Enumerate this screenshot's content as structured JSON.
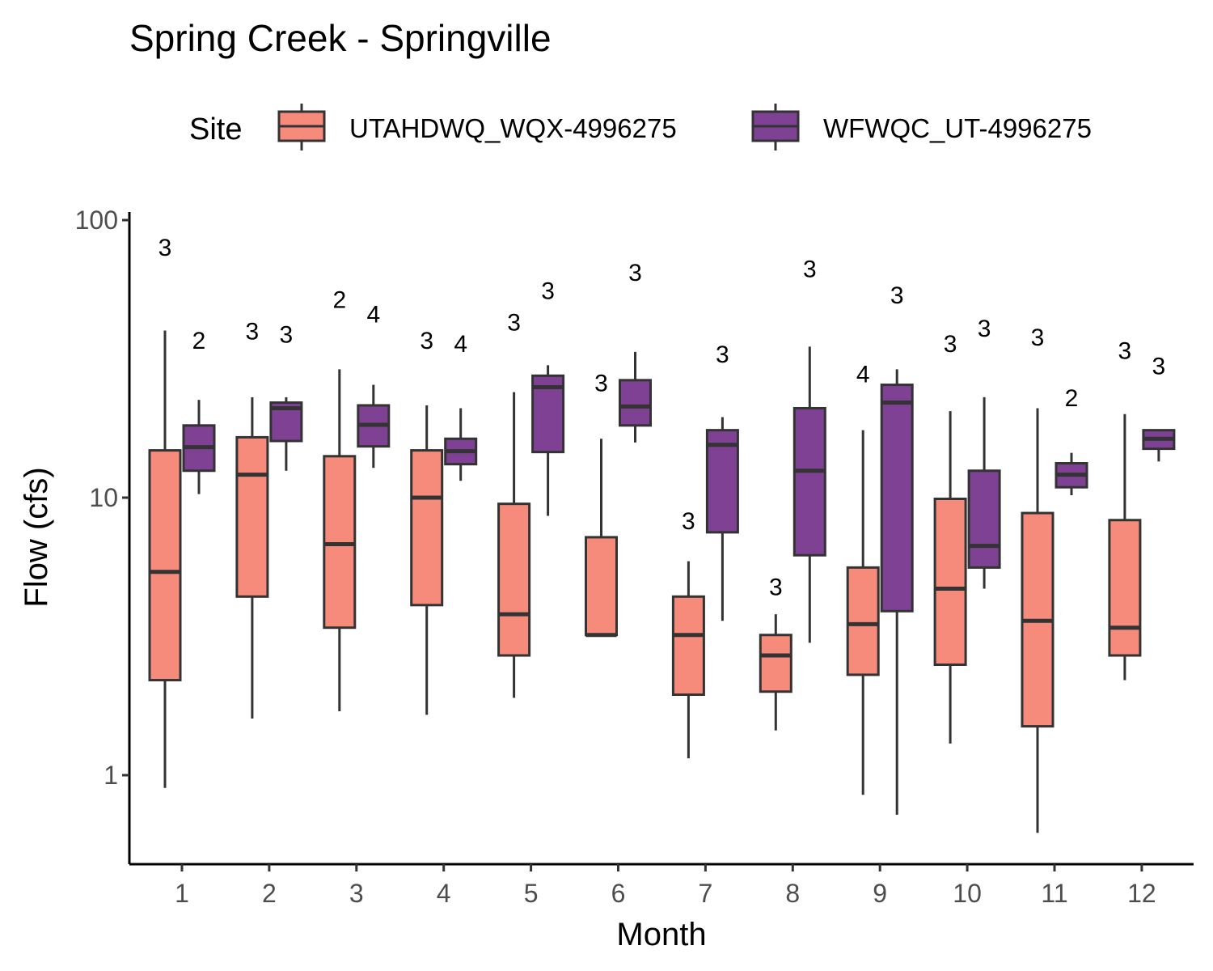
{
  "chart_data": {
    "type": "box",
    "title": "Spring Creek - Springville",
    "xlabel": "Month",
    "ylabel": "Flow (cfs)",
    "y_scale": "log10",
    "ylim": [
      0.53,
      100
    ],
    "y_ticks": [
      1,
      10,
      100
    ],
    "y_tick_labels": [
      "1",
      "10",
      "100"
    ],
    "categories": [
      "1",
      "2",
      "3",
      "4",
      "5",
      "6",
      "7",
      "8",
      "9",
      "10",
      "11",
      "12"
    ],
    "legend": {
      "title": "Site",
      "position": "top"
    },
    "grid": false,
    "series": [
      {
        "name": "UTAHDWQ_WQX-4996275",
        "color": "#F68B7C",
        "boxes": [
          {
            "month": "1",
            "min": 0.9,
            "q1": 2.2,
            "median": 5.4,
            "q3": 14.8,
            "max": 40,
            "n": "3"
          },
          {
            "month": "2",
            "min": 1.6,
            "q1": 4.4,
            "median": 12.1,
            "q3": 16.5,
            "max": 23,
            "n": "3"
          },
          {
            "month": "3",
            "min": 1.7,
            "q1": 3.4,
            "median": 6.8,
            "q3": 14.1,
            "max": 29,
            "n": "2"
          },
          {
            "month": "4",
            "min": 1.65,
            "q1": 4.1,
            "median": 10.0,
            "q3": 14.8,
            "max": 21.5,
            "n": "3"
          },
          {
            "month": "5",
            "min": 1.9,
            "q1": 2.7,
            "median": 3.8,
            "q3": 9.5,
            "max": 24,
            "n": "3"
          },
          {
            "month": "6",
            "min": 3.2,
            "q1": 3.2,
            "median": 3.2,
            "q3": 7.2,
            "max": 16.3,
            "n": "3"
          },
          {
            "month": "7",
            "min": 1.15,
            "q1": 1.95,
            "median": 3.2,
            "q3": 4.4,
            "max": 5.9,
            "n": "3"
          },
          {
            "month": "8",
            "min": 1.45,
            "q1": 2.0,
            "median": 2.7,
            "q3": 3.2,
            "max": 3.8,
            "n": "3"
          },
          {
            "month": "9",
            "min": 0.85,
            "q1": 2.3,
            "median": 3.5,
            "q3": 5.6,
            "max": 17.5,
            "n": "4"
          },
          {
            "month": "10",
            "min": 1.3,
            "q1": 2.5,
            "median": 4.7,
            "q3": 9.9,
            "max": 20.5,
            "n": "3"
          },
          {
            "month": "11",
            "min": 0.62,
            "q1": 1.5,
            "median": 3.6,
            "q3": 8.8,
            "max": 21,
            "n": "3"
          },
          {
            "month": "12",
            "min": 2.2,
            "q1": 2.7,
            "median": 3.4,
            "q3": 8.3,
            "max": 20,
            "n": "3"
          }
        ]
      },
      {
        "name": "WFWQC_UT-4996275",
        "color": "#7E4194",
        "boxes": [
          {
            "month": "1",
            "min": 10.3,
            "q1": 12.5,
            "median": 15.2,
            "q3": 18.2,
            "max": 22.5,
            "n": "2"
          },
          {
            "month": "2",
            "min": 12.5,
            "q1": 16.0,
            "median": 21.0,
            "q3": 22.0,
            "max": 23,
            "n": "3"
          },
          {
            "month": "3",
            "min": 12.8,
            "q1": 15.3,
            "median": 18.3,
            "q3": 21.5,
            "max": 25.5,
            "n": "4"
          },
          {
            "month": "4",
            "min": 11.5,
            "q1": 13.2,
            "median": 14.7,
            "q3": 16.3,
            "max": 21,
            "n": "4"
          },
          {
            "month": "5",
            "min": 8.6,
            "q1": 14.6,
            "median": 25,
            "q3": 27.5,
            "max": 30,
            "n": "3"
          },
          {
            "month": "6",
            "min": 15.8,
            "q1": 18.2,
            "median": 21.3,
            "q3": 26.5,
            "max": 33.5,
            "n": "3"
          },
          {
            "month": "7",
            "min": 3.6,
            "q1": 7.5,
            "median": 15.5,
            "q3": 17.5,
            "max": 19.5,
            "n": "3"
          },
          {
            "month": "8",
            "min": 3.0,
            "q1": 6.2,
            "median": 12.5,
            "q3": 21,
            "max": 35,
            "n": "3"
          },
          {
            "month": "9",
            "min": 0.72,
            "q1": 3.9,
            "median": 22,
            "q3": 25.5,
            "max": 29,
            "n": "3"
          },
          {
            "month": "10",
            "min": 4.7,
            "q1": 5.6,
            "median": 6.7,
            "q3": 12.5,
            "max": 23,
            "n": "3"
          },
          {
            "month": "11",
            "min": 10.2,
            "q1": 10.9,
            "median": 12.1,
            "q3": 13.3,
            "max": 14.5,
            "n": "2"
          },
          {
            "month": "12",
            "min": 13.5,
            "q1": 15.0,
            "median": 16.3,
            "q3": 17.5,
            "max": 17.5,
            "n": "3"
          }
        ]
      }
    ],
    "count_labels": [
      {
        "series": 0,
        "month": "1",
        "text": "3",
        "y": 80
      },
      {
        "series": 1,
        "month": "1",
        "text": "2",
        "y": 37
      },
      {
        "series": 0,
        "month": "2",
        "text": "3",
        "y": 40
      },
      {
        "series": 1,
        "month": "2",
        "text": "3",
        "y": 39
      },
      {
        "series": 0,
        "month": "3",
        "text": "2",
        "y": 52
      },
      {
        "series": 1,
        "month": "3",
        "text": "4",
        "y": 46
      },
      {
        "series": 0,
        "month": "4",
        "text": "3",
        "y": 37
      },
      {
        "series": 1,
        "month": "4",
        "text": "4",
        "y": 36
      },
      {
        "series": 0,
        "month": "5",
        "text": "3",
        "y": 43
      },
      {
        "series": 1,
        "month": "5",
        "text": "3",
        "y": 56
      },
      {
        "series": 0,
        "month": "6",
        "text": "3",
        "y": 26
      },
      {
        "series": 1,
        "month": "6",
        "text": "3",
        "y": 65
      },
      {
        "series": 0,
        "month": "7",
        "text": "3",
        "y": 8.3
      },
      {
        "series": 1,
        "month": "7",
        "text": "3",
        "y": 33
      },
      {
        "series": 0,
        "month": "8",
        "text": "3",
        "y": 4.8
      },
      {
        "series": 1,
        "month": "8",
        "text": "3",
        "y": 67
      },
      {
        "series": 0,
        "month": "9",
        "text": "4",
        "y": 28
      },
      {
        "series": 1,
        "month": "9",
        "text": "3",
        "y": 54
      },
      {
        "series": 0,
        "month": "10",
        "text": "3",
        "y": 36
      },
      {
        "series": 1,
        "month": "10",
        "text": "3",
        "y": 41
      },
      {
        "series": 0,
        "month": "11",
        "text": "3",
        "y": 38
      },
      {
        "series": 1,
        "month": "11",
        "text": "2",
        "y": 23
      },
      {
        "series": 0,
        "month": "12",
        "text": "3",
        "y": 34
      },
      {
        "series": 1,
        "month": "12",
        "text": "3",
        "y": 30
      }
    ]
  }
}
